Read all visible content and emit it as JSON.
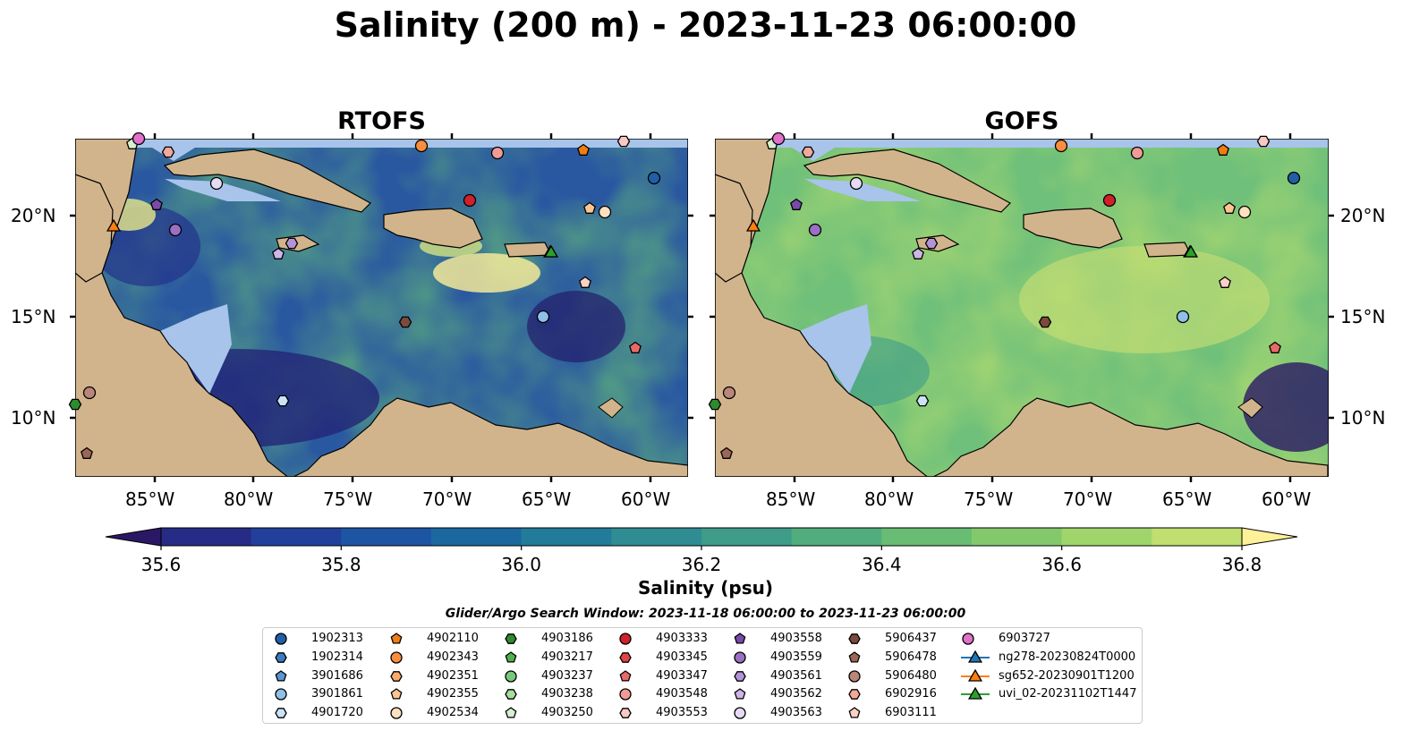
{
  "title": "Salinity (200 m) - 2023-11-23 06:00:00",
  "panels": [
    {
      "title": "RTOFS"
    },
    {
      "title": "GOFS"
    }
  ],
  "lon_labels": [
    "85°W",
    "80°W",
    "75°W",
    "70°W",
    "65°W",
    "60°W"
  ],
  "lat_labels": [
    "20°N",
    "15°N",
    "10°N"
  ],
  "colorbar": {
    "label": "Salinity (psu)",
    "ticks": [
      "35.6",
      "35.8",
      "36.0",
      "36.2",
      "36.4",
      "36.6",
      "36.8"
    ],
    "colors": [
      "#2a1864",
      "#262b86",
      "#22409b",
      "#1d55a3",
      "#1b689f",
      "#237b9a",
      "#2f8c92",
      "#3e9c88",
      "#52ad7e",
      "#69bc73",
      "#83c96c",
      "#a0d56b",
      "#c0df70",
      "#fff09a"
    ]
  },
  "legend": {
    "title": "Glider/Argo Search Window: 2023-11-18 06:00:00 to 2023-11-23 06:00:00",
    "columns": [
      [
        {
          "label": "1902313",
          "marker": "circle",
          "color": "#1f5fa8"
        },
        {
          "label": "1902314",
          "marker": "hexagon",
          "color": "#3a7cc0"
        },
        {
          "label": "3901686",
          "marker": "pentagon",
          "color": "#5a96cf"
        },
        {
          "label": "3901861",
          "marker": "circle",
          "color": "#8fc0e8"
        },
        {
          "label": "4901720",
          "marker": "hexagon",
          "color": "#c9e3f7"
        }
      ],
      [
        {
          "label": "4902110",
          "marker": "pentagon",
          "color": "#f07c14"
        },
        {
          "label": "4902343",
          "marker": "circle",
          "color": "#fb8d3c"
        },
        {
          "label": "4902351",
          "marker": "hexagon",
          "color": "#fbaa6a"
        },
        {
          "label": "4902355",
          "marker": "pentagon",
          "color": "#fcc592"
        },
        {
          "label": "4902534",
          "marker": "circle",
          "color": "#fde0c0"
        }
      ],
      [
        {
          "label": "4903186",
          "marker": "hexagon",
          "color": "#2e8b2e"
        },
        {
          "label": "4903217",
          "marker": "pentagon",
          "color": "#4fb04f"
        },
        {
          "label": "4903237",
          "marker": "circle",
          "color": "#78c878"
        },
        {
          "label": "4903238",
          "marker": "hexagon",
          "color": "#a8dca0"
        },
        {
          "label": "4903250",
          "marker": "pentagon",
          "color": "#d6f1cf"
        }
      ],
      [
        {
          "label": "4903333",
          "marker": "circle",
          "color": "#d0202a"
        },
        {
          "label": "4903345",
          "marker": "hexagon",
          "color": "#e04444"
        },
        {
          "label": "4903347",
          "marker": "pentagon",
          "color": "#e86a68"
        },
        {
          "label": "4903548",
          "marker": "circle",
          "color": "#f19a96"
        },
        {
          "label": "4903553",
          "marker": "hexagon",
          "color": "#f8c8c4"
        }
      ],
      [
        {
          "label": "4903558",
          "marker": "pentagon",
          "color": "#7a4aa8"
        },
        {
          "label": "4903559",
          "marker": "circle",
          "color": "#9a70c4"
        },
        {
          "label": "4903561",
          "marker": "hexagon",
          "color": "#b394d6"
        },
        {
          "label": "4903562",
          "marker": "pentagon",
          "color": "#cdb6e6"
        },
        {
          "label": "4903563",
          "marker": "circle",
          "color": "#e6daf5"
        }
      ],
      [
        {
          "label": "5906437",
          "marker": "hexagon",
          "color": "#7a4a3c"
        },
        {
          "label": "5906478",
          "marker": "pentagon",
          "color": "#9a6656"
        },
        {
          "label": "5906480",
          "marker": "circle",
          "color": "#b98678"
        },
        {
          "label": "6902916",
          "marker": "hexagon",
          "color": "#f2a89a"
        },
        {
          "label": "6903111",
          "marker": "pentagon",
          "color": "#fbd0c6"
        }
      ],
      [
        {
          "label": "6903727",
          "marker": "circle",
          "color": "#e070c8"
        },
        {
          "label": "ng278-20230824T0000",
          "marker": "triangle-line",
          "color": "#1f77b4"
        },
        {
          "label": "sg652-20230901T1200",
          "marker": "triangle-line",
          "color": "#ff7f0e"
        },
        {
          "label": "uvi_02-20231102T1447",
          "marker": "triangle-line",
          "color": "#2ca02c"
        }
      ]
    ]
  }
}
